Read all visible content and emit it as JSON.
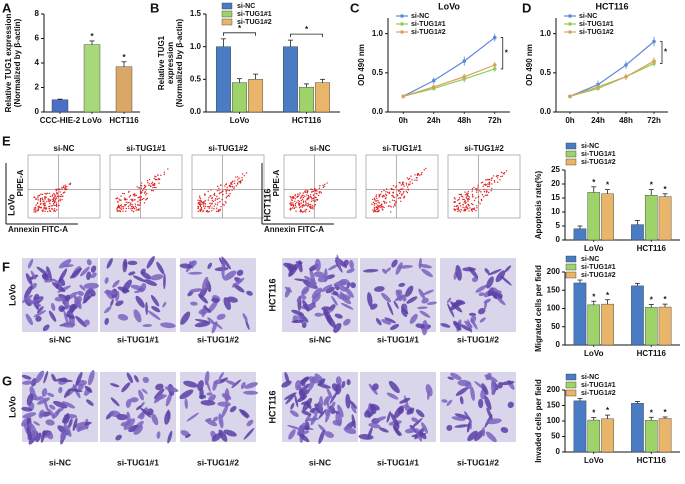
{
  "panel_labels": [
    "A",
    "B",
    "C",
    "D",
    "E",
    "F",
    "G"
  ],
  "flow": {
    "cell_lines": [
      "LoVo",
      "HCT116"
    ],
    "groups": [
      "si-NC",
      "si-TUG1#1",
      "si-TUG1#2"
    ],
    "y_label": "PIPE-A",
    "x_label": "Annexin FITC-A"
  },
  "micrographs": {
    "cell_lines": [
      "LoVo",
      "HCT116"
    ],
    "groups": [
      "si-NC",
      "si-TUG1#1",
      "si-TUG1#2"
    ]
  },
  "chart_data": [
    {
      "type": "bar",
      "ylabel": [
        "Relative TUG1 expression",
        "(Normalized by β-actin)"
      ],
      "categories": [
        "CCC-HIE-2",
        "LoVo",
        "HCT116"
      ],
      "values": [
        1.0,
        5.5,
        3.7
      ],
      "errors": [
        0.05,
        0.3,
        0.4
      ],
      "colors": [
        "#4a6fc4",
        "#a7d87a",
        "#d9a866"
      ],
      "markers": [
        null,
        "*",
        "*"
      ],
      "ylim": [
        0,
        8
      ],
      "yticks": [
        0,
        2,
        4,
        6,
        8
      ]
    },
    {
      "type": "bar",
      "ylabel": [
        "Relative TUG1",
        "expression",
        "(Normalized by β-actin)"
      ],
      "categories": [
        "LoVo",
        "HCT116"
      ],
      "series": [
        {
          "name": "si-NC",
          "color": "#4a7cc4",
          "values": [
            1.0,
            1.0
          ],
          "errors": [
            0.12,
            0.1
          ]
        },
        {
          "name": "si-TUG1#1",
          "color": "#9ed36a",
          "values": [
            0.45,
            0.38
          ],
          "errors": [
            0.06,
            0.05
          ]
        },
        {
          "name": "si-TUG1#2",
          "color": "#e8b56a",
          "values": [
            0.5,
            0.45
          ],
          "errors": [
            0.08,
            0.05
          ]
        }
      ],
      "significance": [
        "*",
        "*"
      ],
      "ylim": [
        0,
        1.5
      ],
      "yticks": [
        {
          "value": 0,
          "label": "0.0"
        },
        {
          "value": 0.5,
          "label": "0.5"
        },
        {
          "value": 1,
          "label": "1.0"
        },
        {
          "value": 1.5,
          "label": "1.5"
        }
      ]
    },
    {
      "type": "line",
      "title": "LoVo",
      "ylabel": [
        "OD 490 nm"
      ],
      "categories": [
        "0h",
        "24h",
        "48h",
        "72h"
      ],
      "series": [
        {
          "name": "si-NC",
          "color": "#5b8bd6",
          "values": [
            0.2,
            0.4,
            0.65,
            0.95
          ],
          "errors": [
            0.02,
            0.04,
            0.06,
            0.05
          ]
        },
        {
          "name": "si-TUG1#1",
          "color": "#8fce5a",
          "values": [
            0.2,
            0.3,
            0.42,
            0.55
          ],
          "errors": [
            0.02,
            0.03,
            0.04,
            0.04
          ]
        },
        {
          "name": "si-TUG1#2",
          "color": "#d6a35a",
          "values": [
            0.2,
            0.32,
            0.45,
            0.6
          ],
          "errors": [
            0.02,
            0.03,
            0.04,
            0.04
          ]
        }
      ],
      "significance": "*",
      "ylim": [
        0,
        1.2
      ],
      "yticks": [
        {
          "value": 0,
          "label": "0.0"
        },
        {
          "value": 0.5,
          "label": "0.5"
        },
        {
          "value": 1,
          "label": "1.0"
        }
      ]
    },
    {
      "type": "line",
      "title": "HCT116",
      "ylabel": [
        "OD 490 nm"
      ],
      "categories": [
        "0h",
        "24h",
        "48h",
        "72h"
      ],
      "series": [
        {
          "name": "si-NC",
          "color": "#5b8bd6",
          "values": [
            0.2,
            0.35,
            0.6,
            0.9
          ],
          "errors": [
            0.02,
            0.05,
            0.05,
            0.06
          ]
        },
        {
          "name": "si-TUG1#1",
          "color": "#8fce5a",
          "values": [
            0.2,
            0.3,
            0.45,
            0.62
          ],
          "errors": [
            0.02,
            0.03,
            0.04,
            0.04
          ]
        },
        {
          "name": "si-TUG1#2",
          "color": "#d6a35a",
          "values": [
            0.2,
            0.32,
            0.45,
            0.65
          ],
          "errors": [
            0.02,
            0.03,
            0.04,
            0.05
          ]
        }
      ],
      "significance": "*",
      "ylim": [
        0,
        1.2
      ],
      "yticks": [
        {
          "value": 0,
          "label": "0.0"
        },
        {
          "value": 0.5,
          "label": "0.5"
        },
        {
          "value": 1,
          "label": "1.0"
        }
      ]
    },
    {
      "type": "bar",
      "ylabel": [
        "Apoptosis rate(%)"
      ],
      "categories": [
        "LoVo",
        "HCT116"
      ],
      "series": [
        {
          "name": "si-NC",
          "color": "#4a7cc4",
          "values": [
            4,
            5.5
          ],
          "errors": [
            1,
            1.5
          ],
          "markers": [
            null,
            null
          ]
        },
        {
          "name": "si-TUG1#1",
          "color": "#9ed36a",
          "values": [
            17,
            16
          ],
          "errors": [
            2,
            2
          ],
          "markers": [
            "*",
            "*"
          ]
        },
        {
          "name": "si-TUG1#2",
          "color": "#e8b56a",
          "values": [
            16.5,
            15.5
          ],
          "errors": [
            1.5,
            1
          ],
          "markers": [
            "*",
            "*"
          ]
        }
      ],
      "ylim": [
        0,
        25
      ],
      "yticks": [
        0,
        5,
        10,
        15,
        20,
        25
      ]
    },
    {
      "type": "bar",
      "ylabel": [
        "Migrated cells per field"
      ],
      "categories": [
        "LoVo",
        "HCT116"
      ],
      "series": [
        {
          "name": "si-NC",
          "color": "#4a7cc4",
          "values": [
            170,
            162
          ],
          "errors": [
            8,
            7
          ],
          "markers": [
            null,
            null
          ]
        },
        {
          "name": "si-TUG1#1",
          "color": "#9ed36a",
          "values": [
            110,
            103
          ],
          "errors": [
            10,
            8
          ],
          "markers": [
            "*",
            "*"
          ]
        },
        {
          "name": "si-TUG1#2",
          "color": "#e8b56a",
          "values": [
            112,
            104
          ],
          "errors": [
            12,
            8
          ],
          "markers": [
            "*",
            "*"
          ]
        }
      ],
      "ylim": [
        0,
        200
      ],
      "yticks": [
        0,
        50,
        100,
        150,
        200
      ]
    },
    {
      "type": "bar",
      "ylabel": [
        "Invaded cells per field"
      ],
      "categories": [
        "LoVo",
        "HCT116"
      ],
      "series": [
        {
          "name": "si-NC",
          "color": "#4a7cc4",
          "values": [
            165,
            157
          ],
          "errors": [
            8,
            6
          ],
          "markers": [
            null,
            null
          ]
        },
        {
          "name": "si-TUG1#1",
          "color": "#9ed36a",
          "values": [
            103,
            102
          ],
          "errors": [
            8,
            10
          ],
          "markers": [
            "*",
            "*"
          ]
        },
        {
          "name": "si-TUG1#2",
          "color": "#e8b56a",
          "values": [
            107,
            108
          ],
          "errors": [
            12,
            5
          ],
          "markers": [
            "*",
            "*"
          ]
        }
      ],
      "ylim": [
        0,
        200
      ],
      "yticks": [
        0,
        50,
        100,
        150,
        200
      ]
    }
  ]
}
